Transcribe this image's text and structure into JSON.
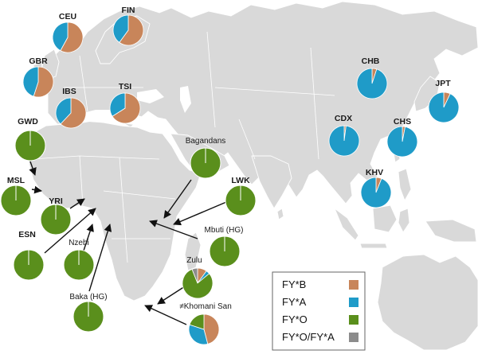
{
  "colors": {
    "FY*B": "#c8855a",
    "FY*A": "#1f9bc8",
    "FY*O": "#5a8f1c",
    "FY*O/FY*A": "#8c8c8c"
  },
  "legend": [
    {
      "key": "FY*B",
      "label": "FY*B"
    },
    {
      "key": "FY*A",
      "label": "FY*A"
    },
    {
      "key": "FY*O",
      "label": "FY*O"
    },
    {
      "key": "FY*O/FY*A",
      "label": "FY*O/FY*A"
    }
  ],
  "populations": [
    {
      "id": "CEU",
      "label": "CEU",
      "values": {
        "FY*B": 0.58,
        "FY*A": 0.42,
        "FY*O": 0.0,
        "FY*O/FY*A": 0.0
      }
    },
    {
      "id": "FIN",
      "label": "FIN",
      "values": {
        "FY*B": 0.6,
        "FY*A": 0.4,
        "FY*O": 0.0,
        "FY*O/FY*A": 0.0
      }
    },
    {
      "id": "GBR",
      "label": "GBR",
      "values": {
        "FY*B": 0.55,
        "FY*A": 0.45,
        "FY*O": 0.0,
        "FY*O/FY*A": 0.0
      }
    },
    {
      "id": "IBS",
      "label": "IBS",
      "values": {
        "FY*B": 0.62,
        "FY*A": 0.38,
        "FY*O": 0.0,
        "FY*O/FY*A": 0.0
      }
    },
    {
      "id": "TSI",
      "label": "TSI",
      "values": {
        "FY*B": 0.66,
        "FY*A": 0.34,
        "FY*O": 0.0,
        "FY*O/FY*A": 0.0
      }
    },
    {
      "id": "GWD",
      "label": "GWD",
      "values": {
        "FY*B": 0.0,
        "FY*A": 0.0,
        "FY*O": 1.0,
        "FY*O/FY*A": 0.0
      }
    },
    {
      "id": "MSL",
      "label": "MSL",
      "values": {
        "FY*B": 0.0,
        "FY*A": 0.0,
        "FY*O": 1.0,
        "FY*O/FY*A": 0.0
      }
    },
    {
      "id": "YRI",
      "label": "YRI",
      "values": {
        "FY*B": 0.0,
        "FY*A": 0.0,
        "FY*O": 1.0,
        "FY*O/FY*A": 0.0
      }
    },
    {
      "id": "ESN",
      "label": "ESN",
      "values": {
        "FY*B": 0.0,
        "FY*A": 0.0,
        "FY*O": 1.0,
        "FY*O/FY*A": 0.0
      }
    },
    {
      "id": "Nzebi",
      "label": "Nzebi",
      "values": {
        "FY*B": 0.0,
        "FY*A": 0.0,
        "FY*O": 1.0,
        "FY*O/FY*A": 0.0
      }
    },
    {
      "id": "Baka",
      "label": "Baka (HG)",
      "values": {
        "FY*B": 0.0,
        "FY*A": 0.0,
        "FY*O": 1.0,
        "FY*O/FY*A": 0.0
      }
    },
    {
      "id": "Bagandans",
      "label": "Bagandans",
      "values": {
        "FY*B": 0.0,
        "FY*A": 0.0,
        "FY*O": 1.0,
        "FY*O/FY*A": 0.0
      }
    },
    {
      "id": "LWK",
      "label": "LWK",
      "values": {
        "FY*B": 0.0,
        "FY*A": 0.0,
        "FY*O": 1.0,
        "FY*O/FY*A": 0.0
      }
    },
    {
      "id": "Mbuti",
      "label": "Mbuti (HG)",
      "values": {
        "FY*B": 0.0,
        "FY*A": 0.0,
        "FY*O": 1.0,
        "FY*O/FY*A": 0.0
      }
    },
    {
      "id": "Zulu",
      "label": "Zulu",
      "values": {
        "FY*B": 0.1,
        "FY*A": 0.04,
        "FY*O": 0.8,
        "FY*O/FY*A": 0.06
      }
    },
    {
      "id": "Khomani",
      "label": "≠Khomani San",
      "values": {
        "FY*B": 0.46,
        "FY*A": 0.34,
        "FY*O": 0.2,
        "FY*O/FY*A": 0.0
      }
    },
    {
      "id": "CHB",
      "label": "CHB",
      "values": {
        "FY*B": 0.05,
        "FY*A": 0.95,
        "FY*O": 0.0,
        "FY*O/FY*A": 0.0
      }
    },
    {
      "id": "JPT",
      "label": "JPT",
      "values": {
        "FY*B": 0.07,
        "FY*A": 0.93,
        "FY*O": 0.0,
        "FY*O/FY*A": 0.0
      }
    },
    {
      "id": "CDX",
      "label": "CDX",
      "values": {
        "FY*B": 0.02,
        "FY*A": 0.98,
        "FY*O": 0.0,
        "FY*O/FY*A": 0.0
      }
    },
    {
      "id": "CHS",
      "label": "CHS",
      "values": {
        "FY*B": 0.03,
        "FY*A": 0.97,
        "FY*O": 0.0,
        "FY*O/FY*A": 0.0
      }
    },
    {
      "id": "KHV",
      "label": "KHV",
      "values": {
        "FY*B": 0.06,
        "FY*A": 0.94,
        "FY*O": 0.0,
        "FY*O/FY*A": 0.0
      }
    }
  ]
}
